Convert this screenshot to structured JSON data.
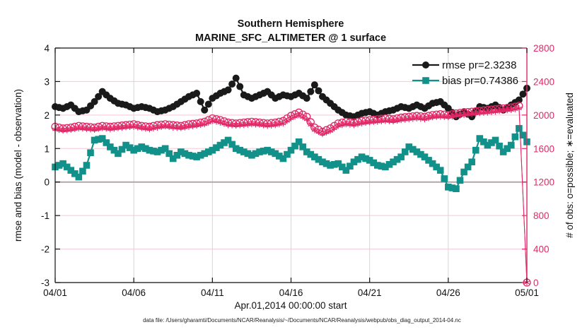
{
  "figure": {
    "caption": "data file: /Users/gharamti/Documents/NCAR/Reanalysis/~/Documents/NCAR/Reanalysis/webpub/obs_diag_output_2014-04.nc"
  },
  "chart_data": {
    "type": "line",
    "title": [
      "Southern Hemisphere",
      "MARINE_SFC_ALTIMETER @ 1 surface"
    ],
    "xlabel": "Apr.01,2014 00:00:00 start",
    "ylabel_left": "rmse and bias (model - observation)",
    "ylabel_right": "# of obs: o=possible; ∗=evaluated",
    "grid": true,
    "x_axis": {
      "unit": "days since Apr 01 2014",
      "start_day": 0,
      "step_days": 0.5,
      "range_days": [
        0,
        30
      ],
      "tick_days": [
        0,
        5,
        10,
        15,
        20,
        25,
        30
      ],
      "tick_labels": [
        "04/01",
        "04/06",
        "04/11",
        "04/16",
        "04/21",
        "04/26",
        "05/01"
      ]
    },
    "left_axis": {
      "min": -3,
      "max": 4,
      "tick_values": [
        4,
        3,
        2,
        1,
        0,
        -1,
        -2,
        -3
      ],
      "tick_labels": [
        "4",
        "3",
        "2",
        "1",
        "0",
        "-1",
        "-2",
        "-3"
      ],
      "color": "#111111",
      "zero_line": 0
    },
    "right_axis": {
      "min": 0,
      "max": 2800,
      "tick_values": [
        2800,
        2400,
        2000,
        1600,
        1200,
        800,
        400,
        0
      ],
      "tick_labels": [
        "2800",
        "2400",
        "2000",
        "1600",
        "1200",
        "800",
        "400",
        "0"
      ],
      "color": "#e12866"
    },
    "legend": {
      "position": "top-right-inside",
      "entries": [
        "rmse pr=2.3238",
        "bias pr=0.74386"
      ]
    },
    "series": [
      {
        "name": "rmse",
        "legend": "rmse pr=2.3238",
        "axis": "left",
        "color": "#1a1a1a",
        "marker": "filled-circle",
        "values": [
          2.25,
          2.2,
          2.3,
          2.1,
          2.15,
          2.4,
          2.7,
          2.5,
          2.35,
          2.3,
          2.2,
          2.25,
          2.2,
          2.1,
          2.15,
          2.25,
          2.4,
          2.55,
          2.65,
          2.15,
          2.5,
          2.65,
          2.75,
          3.1,
          2.6,
          2.5,
          2.6,
          2.7,
          2.5,
          2.6,
          2.55,
          2.65,
          2.5,
          2.9,
          2.55,
          2.35,
          2.15,
          2.0,
          1.95,
          2.05,
          2.1,
          2.0,
          2.1,
          2.15,
          2.25,
          2.2,
          2.3,
          2.2,
          2.35,
          2.4,
          2.2,
          1.95,
          2.1,
          1.95,
          2.25,
          2.2,
          2.3,
          2.15,
          2.3,
          2.45,
          2.8
        ]
      },
      {
        "name": "bias",
        "legend": "bias pr=0.74386",
        "axis": "left",
        "color": "#12908a",
        "marker": "filled-square",
        "values": [
          0.45,
          0.55,
          0.35,
          0.15,
          0.5,
          1.25,
          1.3,
          1.05,
          0.85,
          1.1,
          0.95,
          1.05,
          0.95,
          0.9,
          1.0,
          0.7,
          0.9,
          0.8,
          0.75,
          0.85,
          0.95,
          1.1,
          1.25,
          1.0,
          0.9,
          0.8,
          0.9,
          0.95,
          0.85,
          0.7,
          0.95,
          1.2,
          0.9,
          0.75,
          0.6,
          0.5,
          0.55,
          0.35,
          0.6,
          0.75,
          0.65,
          0.5,
          0.45,
          0.6,
          0.75,
          1.05,
          0.9,
          0.75,
          0.55,
          0.35,
          -0.15,
          -0.2,
          0.3,
          0.6,
          1.3,
          1.1,
          1.25,
          0.9,
          1.1,
          1.6,
          1.2
        ]
      },
      {
        "name": "obs-possible",
        "legend": null,
        "axis": "right",
        "color": "#e12866",
        "marker": "open-circle",
        "values": [
          1860,
          1840,
          1850,
          1870,
          1860,
          1850,
          1870,
          1860,
          1870,
          1880,
          1890,
          1870,
          1860,
          1880,
          1890,
          1880,
          1870,
          1890,
          1900,
          1920,
          1960,
          1940,
          1910,
          1900,
          1910,
          1920,
          1910,
          1900,
          1910,
          1930,
          1990,
          2030,
          1980,
          1850,
          1800,
          1840,
          1900,
          1920,
          1910,
          1930,
          1940,
          1950,
          1960,
          1950,
          1970,
          1980,
          1990,
          1980,
          2000,
          2010,
          2000,
          2020,
          2030,
          2040,
          2050,
          2060,
          2070,
          2080,
          2090,
          2110,
          0
        ]
      },
      {
        "name": "obs-evaluated",
        "legend": null,
        "axis": "right",
        "color": "#e12866",
        "marker": "asterisk",
        "values": [
          1830,
          1815,
          1825,
          1840,
          1835,
          1825,
          1845,
          1830,
          1845,
          1855,
          1860,
          1845,
          1830,
          1850,
          1865,
          1850,
          1845,
          1860,
          1875,
          1890,
          1930,
          1910,
          1880,
          1875,
          1880,
          1890,
          1885,
          1870,
          1880,
          1900,
          1960,
          2000,
          1950,
          1820,
          1775,
          1810,
          1870,
          1890,
          1880,
          1900,
          1915,
          1920,
          1930,
          1925,
          1940,
          1950,
          1960,
          1950,
          1975,
          1980,
          1975,
          1990,
          2000,
          2010,
          2025,
          2030,
          2040,
          2055,
          2060,
          2080,
          0
        ]
      }
    ],
    "style_colors": {
      "h_grid": "#f3c9d6",
      "v_grid": "#d6d6d6",
      "zero_line": "#b0a6ac",
      "spine": "#111111",
      "right_spine": "#e12866"
    }
  }
}
